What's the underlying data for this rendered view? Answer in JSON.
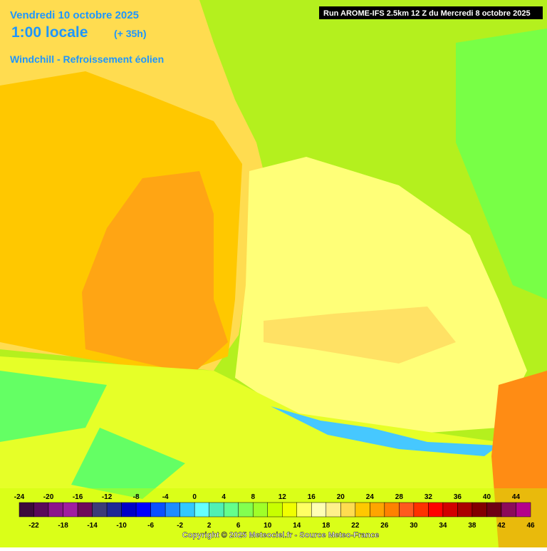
{
  "header": {
    "date": "Vendredi 10 octobre 2025",
    "time": "1:00 locale",
    "lead": "(+ 35h)",
    "field": "Windchill - Refroissement éolien",
    "run": "Run AROME-IFS 2.5km 12 Z du Mercredi 8 octobre 2025"
  },
  "legend": {
    "ticks": [
      -24,
      -22,
      -20,
      -18,
      -16,
      -14,
      -12,
      -10,
      -8,
      -6,
      -4,
      -2,
      0,
      2,
      4,
      6,
      8,
      10,
      12,
      14,
      16,
      18,
      20,
      22,
      24,
      26,
      28,
      30,
      32,
      34,
      36,
      38,
      40,
      42,
      44,
      46
    ],
    "colors": [
      "#3c0a3c",
      "#5a0a5a",
      "#8c148c",
      "#a01ea0",
      "#6e0a5a",
      "#3c3c78",
      "#1e2896",
      "#0000c8",
      "#0000ff",
      "#0a50ff",
      "#1e8cff",
      "#32c8ff",
      "#64ffff",
      "#50f0b4",
      "#64ff8c",
      "#82ff50",
      "#a0ff28",
      "#c8ff00",
      "#f0ff00",
      "#ffff64",
      "#ffffb4",
      "#fff08c",
      "#ffdc50",
      "#ffc800",
      "#ffa500",
      "#ff8200",
      "#ff5a1e",
      "#ff3200",
      "#ff0000",
      "#d20000",
      "#aa0000",
      "#820000",
      "#6e0014",
      "#8c0a5a",
      "#b4008c"
    ]
  },
  "footer": {
    "copyright": "Copyright © 2025 Meteociel.fr - Source Meteo-France"
  }
}
